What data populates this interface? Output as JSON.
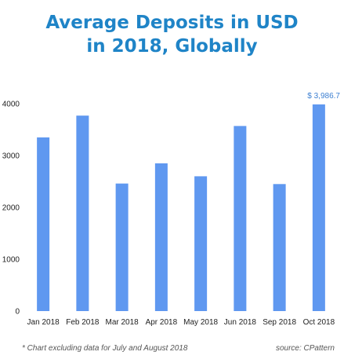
{
  "title": {
    "line1": "Average Deposits in USD",
    "line2": "in 2018, Globally"
  },
  "chart_data": {
    "type": "bar",
    "categories": [
      "Jan 2018",
      "Feb 2018",
      "Mar 2018",
      "Apr 2018",
      "May 2018",
      "Jun 2018",
      "Sep 2018",
      "Oct 2018"
    ],
    "values": [
      3350,
      3770,
      2460,
      2850,
      2600,
      3570,
      2450,
      3986.7
    ],
    "ylim": [
      0,
      4000
    ],
    "yticks": [
      0,
      1000,
      2000,
      3000,
      4000
    ],
    "ytick_labels": [
      "0",
      "1000",
      "2000",
      "3000",
      "4000"
    ],
    "data_labels": [
      {
        "category": "Oct 2018",
        "text": "$ 3,986.7"
      }
    ],
    "grid": false,
    "legend": "none",
    "bar_color": "#5f98f0"
  },
  "footer": {
    "note": "* Chart excluding data for July and August 2018",
    "source": "source: CPattern"
  },
  "colors": {
    "title": "#1f84c7",
    "data_label": "#3c7fd1",
    "axis_text": "#222222",
    "footer_text": "#555555"
  }
}
